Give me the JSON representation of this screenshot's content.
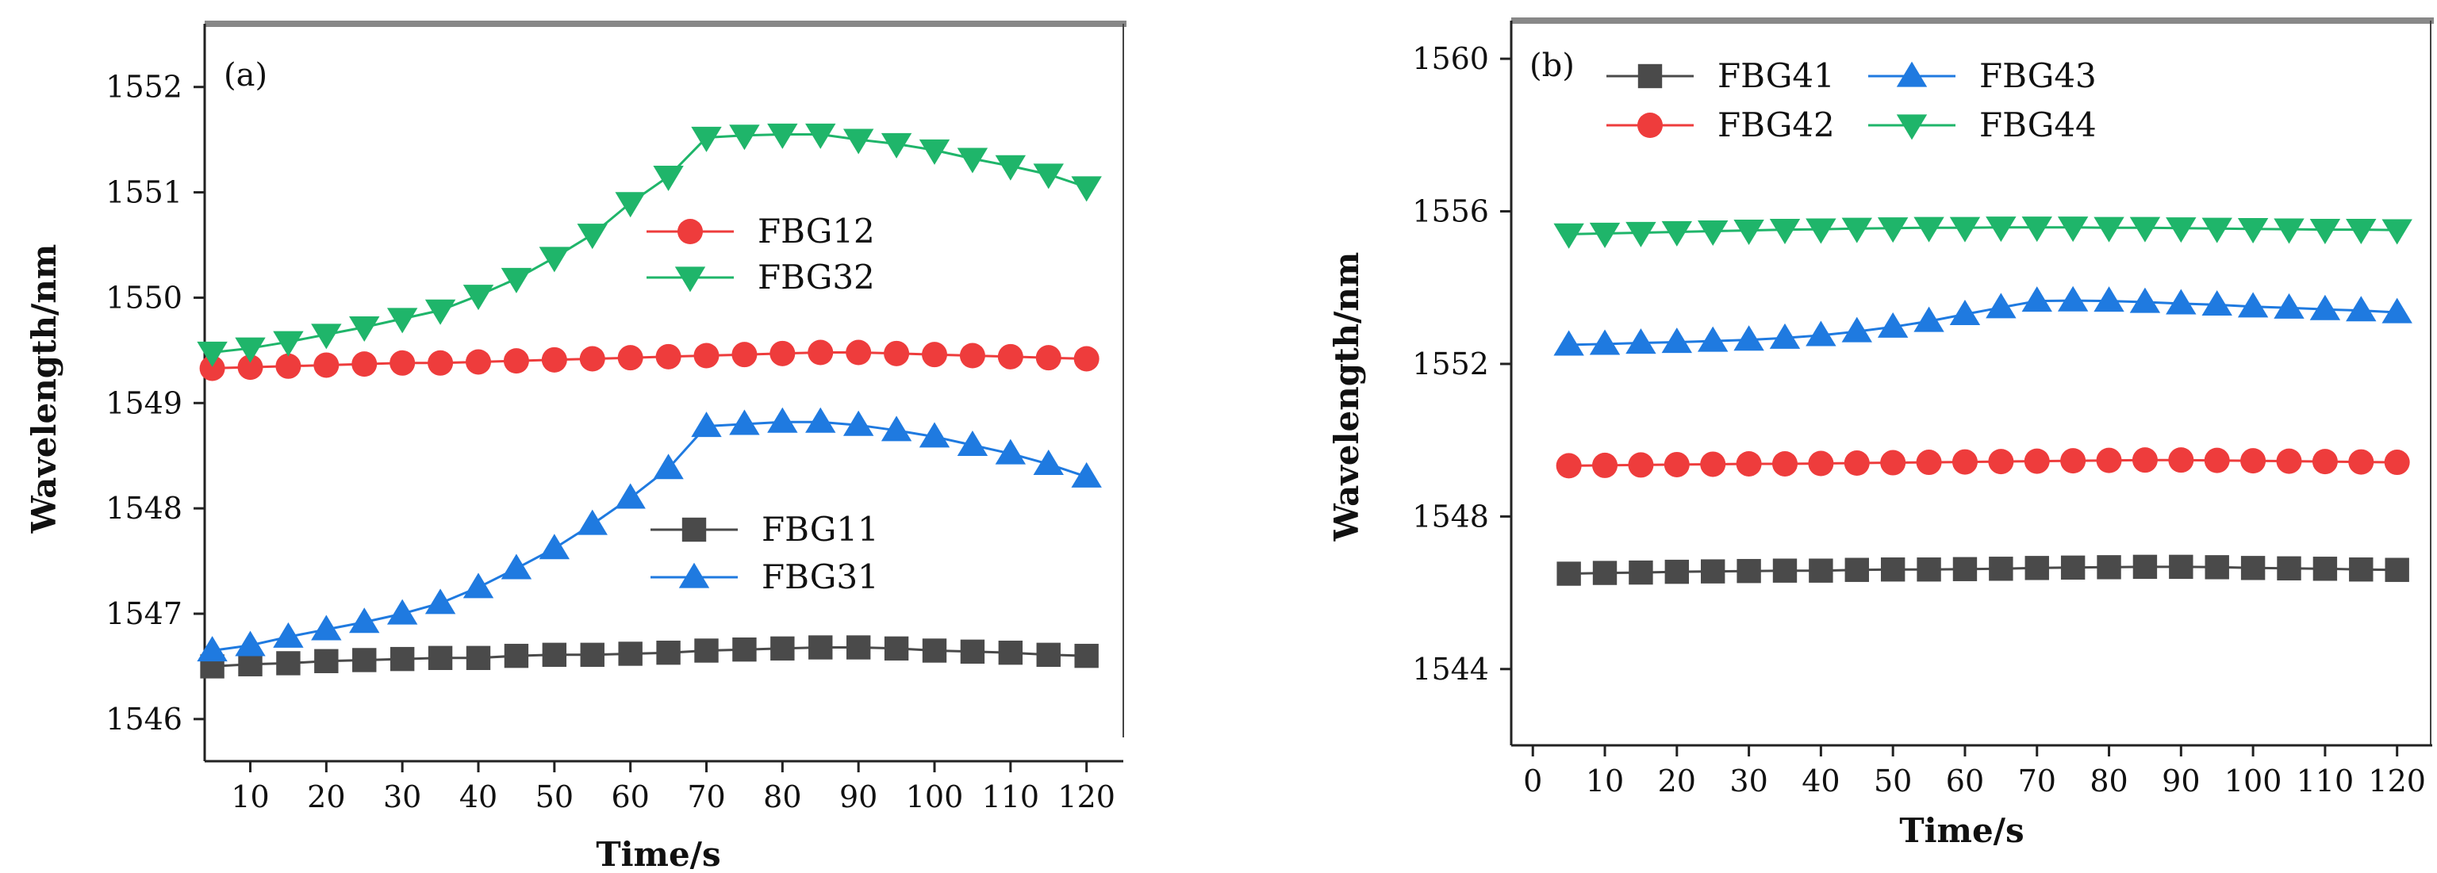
{
  "chart_data": [
    {
      "panel_label": "(a)",
      "type": "line",
      "xlabel": "Time/s",
      "ylabel": "Wavelength/nm",
      "xlim": [
        4,
        124
      ],
      "ylim": [
        1545.6,
        1552.6
      ],
      "xticks": [
        10,
        20,
        30,
        40,
        50,
        60,
        70,
        80,
        90,
        100,
        110,
        120
      ],
      "yticks": [
        1546,
        1547,
        1548,
        1549,
        1550,
        1551,
        1552
      ],
      "grid": false,
      "x": [
        5,
        10,
        15,
        20,
        25,
        30,
        35,
        40,
        45,
        50,
        55,
        60,
        65,
        70,
        75,
        80,
        85,
        90,
        95,
        100,
        105,
        110,
        115,
        120
      ],
      "legends": [
        {
          "placement": "upper-middle",
          "series_refs": [
            "FBG12",
            "FBG32"
          ]
        },
        {
          "placement": "lower-middle",
          "series_refs": [
            "FBG11",
            "FBG31"
          ]
        }
      ],
      "series": [
        {
          "name": "FBG12",
          "marker": "circle",
          "color": "#ee3c3c",
          "values": [
            1549.33,
            1549.34,
            1549.35,
            1549.36,
            1549.37,
            1549.38,
            1549.38,
            1549.39,
            1549.4,
            1549.41,
            1549.42,
            1549.43,
            1549.44,
            1549.45,
            1549.46,
            1549.47,
            1549.48,
            1549.48,
            1549.47,
            1549.46,
            1549.45,
            1549.44,
            1549.43,
            1549.42
          ]
        },
        {
          "name": "FBG32",
          "marker": "triangle-down",
          "color": "#1fb56a",
          "values": [
            1549.48,
            1549.52,
            1549.58,
            1549.65,
            1549.72,
            1549.8,
            1549.88,
            1550.02,
            1550.18,
            1550.38,
            1550.6,
            1550.9,
            1551.15,
            1551.52,
            1551.54,
            1551.55,
            1551.55,
            1551.5,
            1551.46,
            1551.4,
            1551.32,
            1551.25,
            1551.17,
            1551.05
          ]
        },
        {
          "name": "FBG11",
          "marker": "square",
          "color": "#4a4a4a",
          "values": [
            1546.5,
            1546.52,
            1546.53,
            1546.55,
            1546.56,
            1546.57,
            1546.58,
            1546.58,
            1546.6,
            1546.61,
            1546.61,
            1546.62,
            1546.63,
            1546.65,
            1546.66,
            1546.67,
            1546.68,
            1546.68,
            1546.67,
            1546.65,
            1546.64,
            1546.63,
            1546.61,
            1546.6
          ]
        },
        {
          "name": "FBG31",
          "marker": "triangle-up",
          "color": "#1f7ae0",
          "values": [
            1546.65,
            1546.7,
            1546.78,
            1546.85,
            1546.92,
            1547.0,
            1547.1,
            1547.25,
            1547.43,
            1547.62,
            1547.85,
            1548.1,
            1548.38,
            1548.78,
            1548.8,
            1548.82,
            1548.82,
            1548.79,
            1548.74,
            1548.68,
            1548.6,
            1548.52,
            1548.42,
            1548.3
          ]
        }
      ]
    },
    {
      "panel_label": "(b)",
      "type": "line",
      "xlabel": "Time/s",
      "ylabel": "Wavelength/nm",
      "xlim": [
        -3,
        124
      ],
      "ylim": [
        1542,
        1561
      ],
      "xticks": [
        0,
        10,
        20,
        30,
        40,
        50,
        60,
        70,
        80,
        90,
        100,
        110,
        120
      ],
      "yticks": [
        1544,
        1548,
        1552,
        1556,
        1560
      ],
      "grid": false,
      "x": [
        5,
        10,
        15,
        20,
        25,
        30,
        35,
        40,
        45,
        50,
        55,
        60,
        65,
        70,
        75,
        80,
        85,
        90,
        95,
        100,
        105,
        110,
        115,
        120
      ],
      "legends": [
        {
          "placement": "top",
          "series_refs": [
            "FBG41",
            "FBG43",
            "FBG42",
            "FBG44"
          ]
        }
      ],
      "series": [
        {
          "name": "FBG41",
          "marker": "square",
          "color": "#4a4a4a",
          "values": [
            1546.5,
            1546.52,
            1546.53,
            1546.55,
            1546.56,
            1546.57,
            1546.58,
            1546.58,
            1546.6,
            1546.61,
            1546.61,
            1546.62,
            1546.63,
            1546.65,
            1546.66,
            1546.67,
            1546.68,
            1546.68,
            1546.67,
            1546.65,
            1546.64,
            1546.63,
            1546.61,
            1546.6
          ]
        },
        {
          "name": "FBG43",
          "marker": "triangle-up",
          "color": "#1f7ae0",
          "values": [
            1552.5,
            1552.52,
            1552.55,
            1552.57,
            1552.6,
            1552.63,
            1552.68,
            1552.75,
            1552.85,
            1552.97,
            1553.12,
            1553.3,
            1553.48,
            1553.65,
            1553.66,
            1553.65,
            1553.62,
            1553.58,
            1553.55,
            1553.5,
            1553.47,
            1553.43,
            1553.4,
            1553.35
          ]
        },
        {
          "name": "FBG42",
          "marker": "circle",
          "color": "#ee3c3c",
          "values": [
            1549.33,
            1549.34,
            1549.35,
            1549.36,
            1549.37,
            1549.38,
            1549.38,
            1549.39,
            1549.4,
            1549.41,
            1549.42,
            1549.43,
            1549.44,
            1549.45,
            1549.46,
            1549.47,
            1549.48,
            1549.48,
            1549.47,
            1549.46,
            1549.45,
            1549.44,
            1549.43,
            1549.42
          ]
        },
        {
          "name": "FBG44",
          "marker": "triangle-down",
          "color": "#1fb56a",
          "values": [
            1555.4,
            1555.42,
            1555.44,
            1555.46,
            1555.48,
            1555.5,
            1555.52,
            1555.53,
            1555.55,
            1555.56,
            1555.57,
            1555.57,
            1555.58,
            1555.58,
            1555.58,
            1555.57,
            1555.57,
            1555.56,
            1555.55,
            1555.54,
            1555.53,
            1555.52,
            1555.52,
            1555.51
          ]
        }
      ]
    }
  ]
}
